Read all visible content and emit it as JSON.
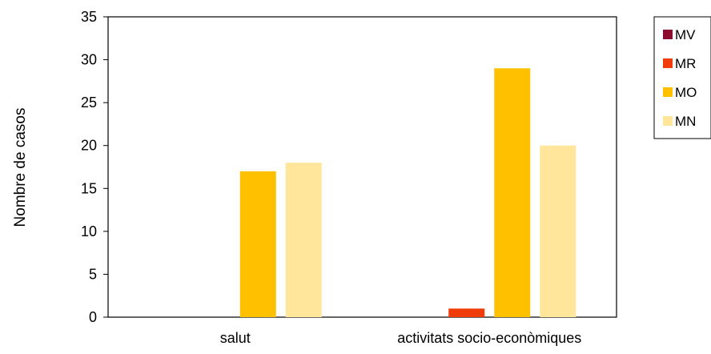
{
  "chart_data": {
    "type": "bar",
    "title": "",
    "xlabel": "",
    "ylabel": "Nombre de casos",
    "ylim": [
      0,
      35
    ],
    "yticks": [
      0,
      5,
      10,
      15,
      20,
      25,
      30,
      35
    ],
    "grid": false,
    "legend_position": "right",
    "categories": [
      "salut",
      "activitats socio-econòmiques"
    ],
    "series": [
      {
        "name": "MV",
        "color": "#8B0A2E",
        "values": [
          0,
          0
        ]
      },
      {
        "name": "MR",
        "color": "#F03C0A",
        "values": [
          0,
          1
        ]
      },
      {
        "name": "MO",
        "color": "#FFC000",
        "values": [
          17,
          29
        ]
      },
      {
        "name": "MN",
        "color": "#FFE69A",
        "values": [
          18,
          20
        ]
      }
    ]
  }
}
